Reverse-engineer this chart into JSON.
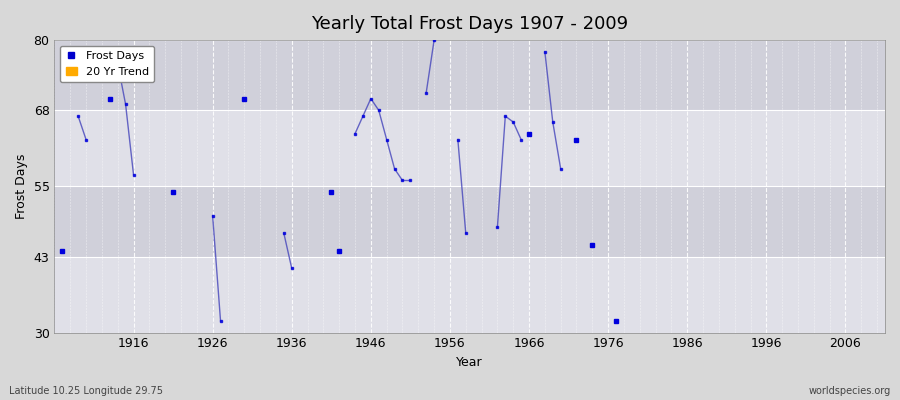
{
  "title": "Yearly Total Frost Days 1907 - 2009",
  "xlabel": "Year",
  "ylabel": "Frost Days",
  "xlim": [
    1906,
    2011
  ],
  "ylim": [
    30,
    80
  ],
  "xticks": [
    1916,
    1926,
    1936,
    1946,
    1956,
    1966,
    1976,
    1986,
    1996,
    2006
  ],
  "yticks": [
    30,
    43,
    55,
    68,
    80
  ],
  "plot_bg_color": "#d8d8d8",
  "ax_bg_color": "#d8d8d8",
  "grid_color": "#ffffff",
  "line_color": "#4444bb",
  "marker_color": "#0000dd",
  "legend_frost_color": "#0000cc",
  "legend_trend_color": "#ffaa00",
  "title_fontsize": 13,
  "label_fontsize": 9,
  "footer_left": "Latitude 10.25 Longitude 29.75",
  "footer_right": "worldspecies.org",
  "band_colors": [
    "#e0e0e8",
    "#d0d0da"
  ],
  "data_segments": [
    {
      "years": [
        1907
      ],
      "values": [
        44
      ]
    },
    {
      "years": [
        1909,
        1910
      ],
      "values": [
        67,
        63
      ]
    },
    {
      "years": [
        1913
      ],
      "values": [
        70
      ]
    },
    {
      "years": [
        1914,
        1915,
        1916
      ],
      "values": [
        76,
        69,
        57
      ]
    },
    {
      "years": [
        1921
      ],
      "values": [
        54
      ]
    },
    {
      "years": [
        1926,
        1927
      ],
      "values": [
        50,
        32
      ]
    },
    {
      "years": [
        1930
      ],
      "values": [
        70
      ]
    },
    {
      "years": [
        1935,
        1936
      ],
      "values": [
        47,
        41
      ]
    },
    {
      "years": [
        1941
      ],
      "values": [
        54
      ]
    },
    {
      "years": [
        1942
      ],
      "values": [
        44
      ]
    },
    {
      "years": [
        1944,
        1945,
        1946,
        1947,
        1948,
        1949,
        1950,
        1951
      ],
      "values": [
        64,
        67,
        70,
        68,
        63,
        58,
        56,
        56
      ]
    },
    {
      "years": [
        1953,
        1954
      ],
      "values": [
        71,
        80
      ]
    },
    {
      "years": [
        1957,
        1958
      ],
      "values": [
        63,
        47
      ]
    },
    {
      "years": [
        1962,
        1963,
        1964,
        1965
      ],
      "values": [
        48,
        67,
        66,
        63
      ]
    },
    {
      "years": [
        1966
      ],
      "values": [
        64
      ]
    },
    {
      "years": [
        1968,
        1969,
        1970
      ],
      "values": [
        78,
        66,
        58
      ]
    },
    {
      "years": [
        1972
      ],
      "values": [
        63
      ]
    },
    {
      "years": [
        1974
      ],
      "values": [
        45
      ]
    },
    {
      "years": [
        1977
      ],
      "values": [
        32
      ]
    }
  ]
}
